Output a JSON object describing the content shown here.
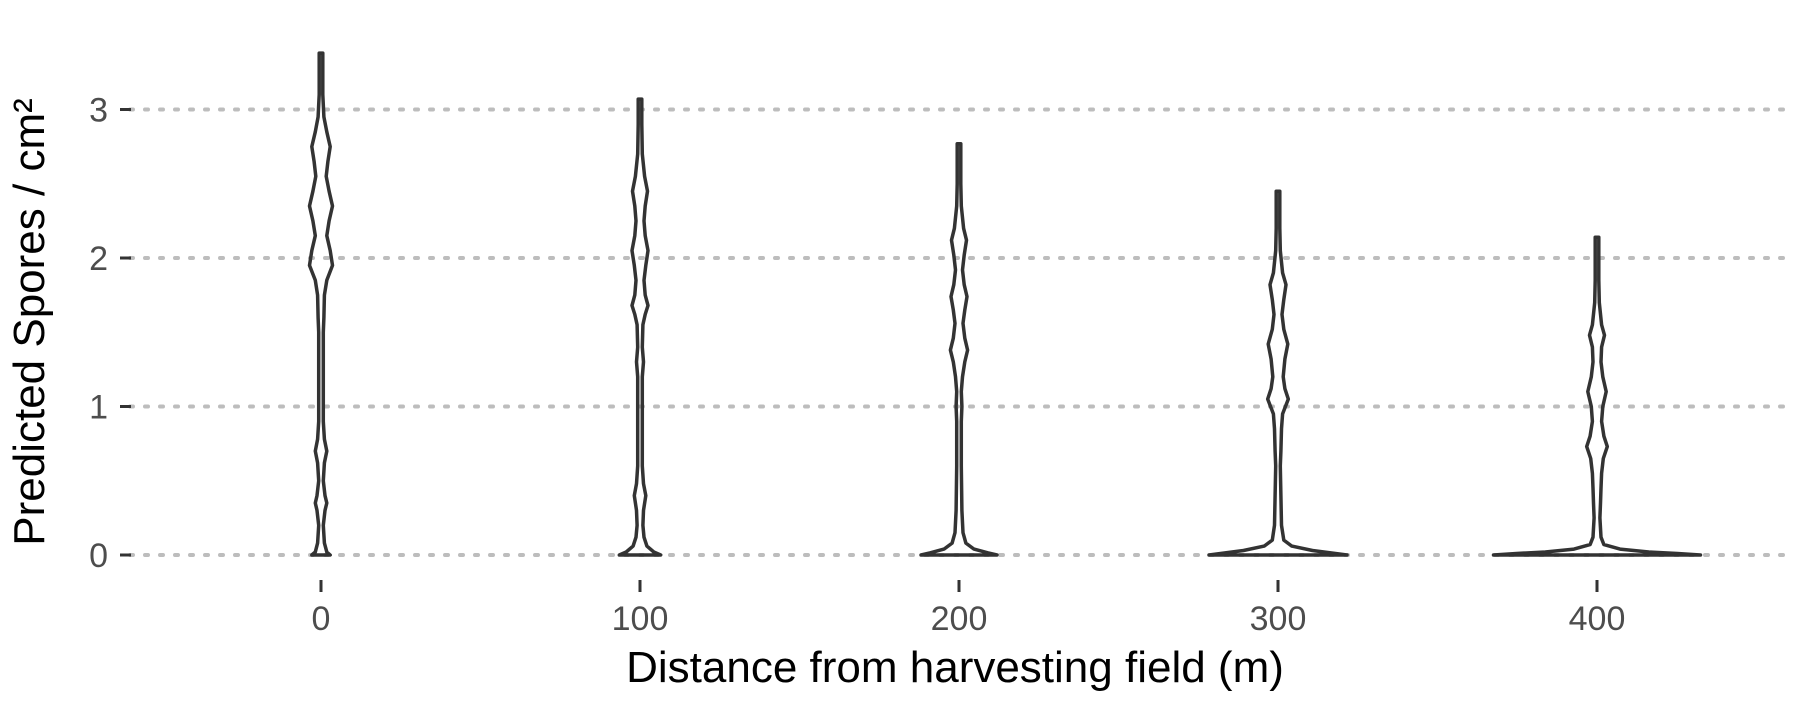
{
  "chart_data": {
    "type": "violin",
    "xlabel": "Distance from harvesting field (m)",
    "ylabel": "Predicted Spores / cm²",
    "categories": [
      "0",
      "100",
      "200",
      "300",
      "400"
    ],
    "yticks": [
      "0",
      "1",
      "2",
      "3"
    ],
    "ylim": [
      0,
      3.4
    ],
    "grid": "horizontal dotted",
    "legend": "none",
    "series": [
      {
        "category": "0",
        "max": 3.38,
        "density": [
          [
            0,
            0.08
          ],
          [
            0.02,
            0.05
          ],
          [
            0.08,
            0.03
          ],
          [
            0.2,
            0.02
          ],
          [
            0.3,
            0.035
          ],
          [
            0.35,
            0.05
          ],
          [
            0.4,
            0.035
          ],
          [
            0.5,
            0.02
          ],
          [
            0.62,
            0.03
          ],
          [
            0.7,
            0.05
          ],
          [
            0.78,
            0.03
          ],
          [
            0.9,
            0.02
          ],
          [
            1.2,
            0.02
          ],
          [
            1.5,
            0.02
          ],
          [
            1.6,
            0.025
          ],
          [
            1.75,
            0.03
          ],
          [
            1.85,
            0.05
          ],
          [
            1.95,
            0.1
          ],
          [
            2.05,
            0.08
          ],
          [
            2.15,
            0.05
          ],
          [
            2.25,
            0.07
          ],
          [
            2.35,
            0.1
          ],
          [
            2.45,
            0.07
          ],
          [
            2.55,
            0.045
          ],
          [
            2.65,
            0.06
          ],
          [
            2.75,
            0.08
          ],
          [
            2.85,
            0.05
          ],
          [
            2.95,
            0.025
          ],
          [
            3.1,
            0.015
          ],
          [
            3.38,
            0.01
          ]
        ]
      },
      {
        "category": "100",
        "max": 3.07,
        "density": [
          [
            0,
            0.18
          ],
          [
            0.02,
            0.12
          ],
          [
            0.06,
            0.06
          ],
          [
            0.12,
            0.035
          ],
          [
            0.2,
            0.025
          ],
          [
            0.3,
            0.03
          ],
          [
            0.4,
            0.05
          ],
          [
            0.48,
            0.03
          ],
          [
            0.6,
            0.02
          ],
          [
            0.9,
            0.02
          ],
          [
            1.2,
            0.02
          ],
          [
            1.3,
            0.03
          ],
          [
            1.4,
            0.02
          ],
          [
            1.55,
            0.025
          ],
          [
            1.62,
            0.045
          ],
          [
            1.68,
            0.07
          ],
          [
            1.75,
            0.045
          ],
          [
            1.85,
            0.035
          ],
          [
            1.95,
            0.05
          ],
          [
            2.05,
            0.07
          ],
          [
            2.15,
            0.045
          ],
          [
            2.25,
            0.035
          ],
          [
            2.35,
            0.045
          ],
          [
            2.45,
            0.065
          ],
          [
            2.55,
            0.04
          ],
          [
            2.7,
            0.02
          ],
          [
            2.9,
            0.012
          ],
          [
            3.07,
            0.008
          ]
        ]
      },
      {
        "category": "200",
        "max": 2.77,
        "density": [
          [
            0,
            0.33
          ],
          [
            0.015,
            0.25
          ],
          [
            0.04,
            0.13
          ],
          [
            0.08,
            0.06
          ],
          [
            0.15,
            0.035
          ],
          [
            0.3,
            0.025
          ],
          [
            0.6,
            0.02
          ],
          [
            0.9,
            0.02
          ],
          [
            1.0,
            0.025
          ],
          [
            1.1,
            0.02
          ],
          [
            1.2,
            0.03
          ],
          [
            1.3,
            0.05
          ],
          [
            1.38,
            0.075
          ],
          [
            1.46,
            0.05
          ],
          [
            1.56,
            0.035
          ],
          [
            1.65,
            0.05
          ],
          [
            1.74,
            0.07
          ],
          [
            1.82,
            0.045
          ],
          [
            1.92,
            0.03
          ],
          [
            2.02,
            0.045
          ],
          [
            2.12,
            0.065
          ],
          [
            2.2,
            0.04
          ],
          [
            2.35,
            0.02
          ],
          [
            2.5,
            0.012
          ],
          [
            2.77,
            0.008
          ]
        ]
      },
      {
        "category": "300",
        "max": 2.45,
        "density": [
          [
            0,
            0.6
          ],
          [
            0.01,
            0.5
          ],
          [
            0.03,
            0.3
          ],
          [
            0.06,
            0.12
          ],
          [
            0.1,
            0.05
          ],
          [
            0.2,
            0.03
          ],
          [
            0.4,
            0.025
          ],
          [
            0.6,
            0.02
          ],
          [
            0.7,
            0.025
          ],
          [
            0.85,
            0.03
          ],
          [
            0.95,
            0.04
          ],
          [
            1.05,
            0.09
          ],
          [
            1.12,
            0.06
          ],
          [
            1.2,
            0.045
          ],
          [
            1.32,
            0.06
          ],
          [
            1.42,
            0.085
          ],
          [
            1.52,
            0.05
          ],
          [
            1.62,
            0.035
          ],
          [
            1.72,
            0.05
          ],
          [
            1.82,
            0.07
          ],
          [
            1.9,
            0.04
          ],
          [
            2.05,
            0.02
          ],
          [
            2.2,
            0.012
          ],
          [
            2.45,
            0.008
          ]
        ]
      },
      {
        "category": "400",
        "max": 2.14,
        "density": [
          [
            0,
            0.9
          ],
          [
            0.01,
            0.7
          ],
          [
            0.02,
            0.45
          ],
          [
            0.04,
            0.2
          ],
          [
            0.07,
            0.06
          ],
          [
            0.12,
            0.035
          ],
          [
            0.25,
            0.025
          ],
          [
            0.35,
            0.03
          ],
          [
            0.45,
            0.035
          ],
          [
            0.55,
            0.04
          ],
          [
            0.65,
            0.055
          ],
          [
            0.73,
            0.09
          ],
          [
            0.8,
            0.06
          ],
          [
            0.9,
            0.04
          ],
          [
            1.0,
            0.05
          ],
          [
            1.1,
            0.08
          ],
          [
            1.2,
            0.05
          ],
          [
            1.3,
            0.035
          ],
          [
            1.4,
            0.04
          ],
          [
            1.48,
            0.065
          ],
          [
            1.55,
            0.04
          ],
          [
            1.7,
            0.02
          ],
          [
            1.85,
            0.012
          ],
          [
            2.14,
            0.008
          ]
        ]
      }
    ]
  }
}
